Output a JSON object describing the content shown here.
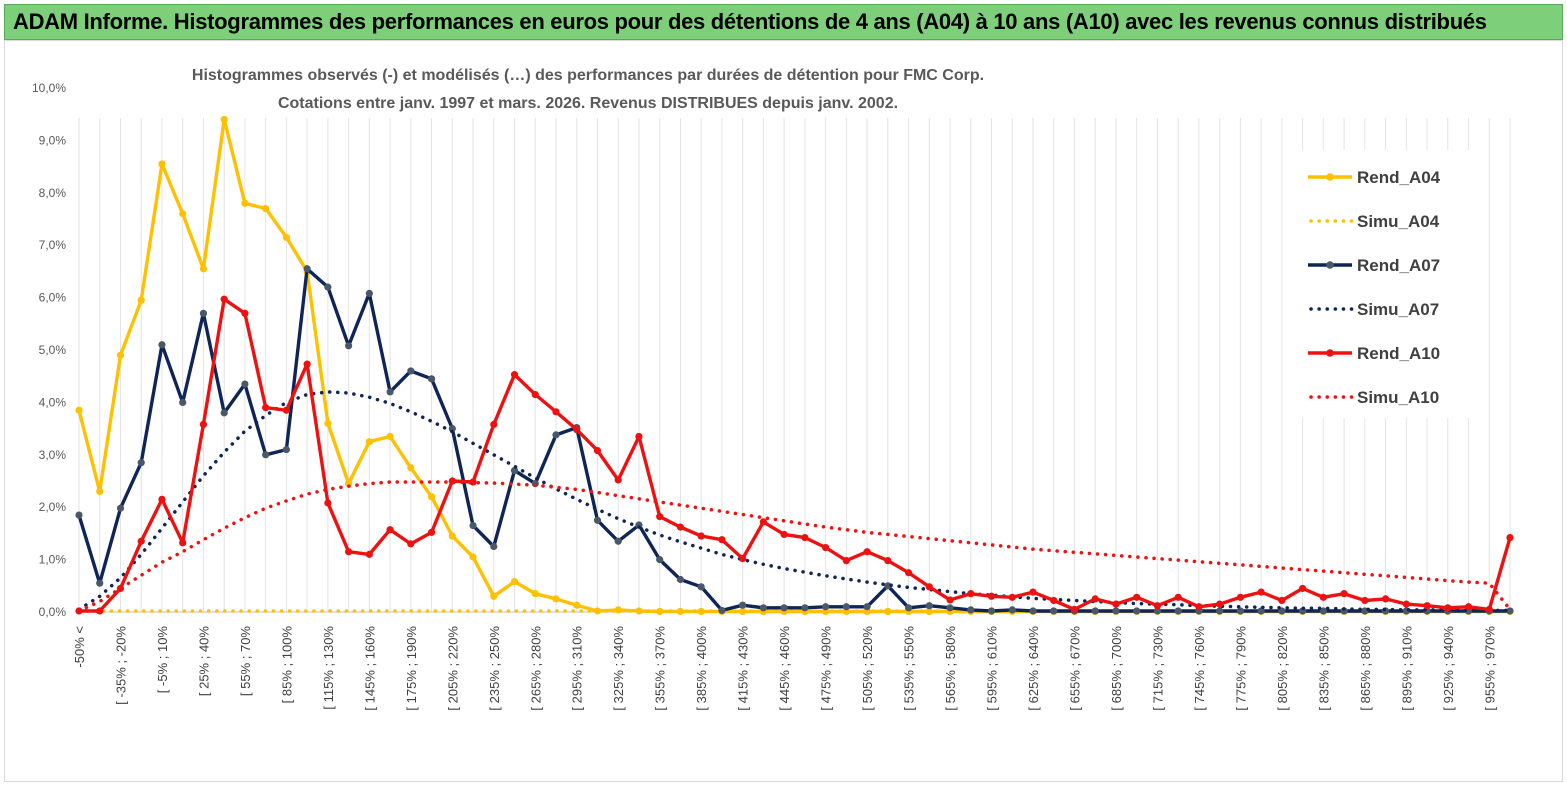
{
  "header": {
    "banner": "ADAM Informe. Histogrammes des performances en euros pour des détentions de 4 ans (A04) à 10 ans (A10) avec les revenus connus distribués"
  },
  "chart_data": {
    "type": "line",
    "title": [
      "Histogrammes observés (-) et modélisés (…) des performances par durées de détention pour FMC Corp.",
      "Cotations entre janv. 1997 et mars. 2026. Revenus DISTRIBUES depuis janv. 2002."
    ],
    "xlabel": "",
    "ylabel": "",
    "ylim": [
      0,
      10
    ],
    "y_unit": "%",
    "y_ticks": [
      "0,0%",
      "1,0%",
      "2,0%",
      "3,0%",
      "4,0%",
      "5,0%",
      "6,0%",
      "7,0%",
      "8,0%",
      "9,0%",
      "10,0%"
    ],
    "x_tick_labels": [
      "-50% <",
      "[ -35% ; -20%",
      "[ -5% ; 10%",
      "[ 25% ; 40%",
      "[ 55% ; 70%",
      "[ 85% ; 100%",
      "[ 115% ; 130%",
      "[ 145% ; 160%",
      "[ 175% ; 190%",
      "[ 205% ; 220%",
      "[ 235% ; 250%",
      "[ 265% ; 280%",
      "[ 295% ; 310%",
      "[ 325% ; 340%",
      "[ 355% ; 370%",
      "[ 385% ; 400%",
      "[ 415% ; 430%",
      "[ 445% ; 460%",
      "[ 475% ; 490%",
      "[ 505% ; 520%",
      "[ 535% ; 550%",
      "[ 565% ; 580%",
      "[ 595% ; 610%",
      "[ 625% ; 640%",
      "[ 655% ; 670%",
      "[ 685% ; 700%",
      "[ 715% ; 730%",
      "[ 745% ; 760%",
      "[ 775% ; 790%",
      "[ 805% ; 820%",
      "[ 835% ; 850%",
      "[ 865% ; 880%",
      "[ 895% ; 910%",
      "[ 925% ; 940%",
      "[ 955% ; 970%"
    ],
    "n_categories": 70,
    "legend_position": "right",
    "series": [
      {
        "name": "Rend_A04",
        "color": "#ffc000",
        "style": "solid",
        "values": [
          3.85,
          2.3,
          4.9,
          5.95,
          8.55,
          7.6,
          6.55,
          9.4,
          7.8,
          7.7,
          7.15,
          6.5,
          3.6,
          2.45,
          3.25,
          3.35,
          2.75,
          2.2,
          1.45,
          1.05,
          0.3,
          0.58,
          0.35,
          0.25,
          0.13,
          0.02,
          0.04,
          0.02,
          0.01,
          0.01,
          0.01,
          0.01,
          0.01,
          0.01,
          0.01,
          0.01,
          0.01,
          0.01,
          0.01,
          0.01,
          0.01,
          0.01,
          0.01,
          0.01,
          0.01,
          0.01,
          0.01,
          0.01,
          0.01,
          0.01,
          0.01,
          0.01,
          0.01,
          0.01,
          0.01,
          0.01,
          0.01,
          0.01,
          0.01,
          0.01,
          0.01,
          0.01,
          0.01,
          0.01,
          0.01,
          0.01,
          0.01,
          0.01,
          0.01,
          0.01
        ]
      },
      {
        "name": "Simu_A04",
        "color": "#ffc000",
        "style": "dotted",
        "values": [
          0.02,
          0.02,
          0.02,
          0.02,
          0.02,
          0.02,
          0.02,
          0.02,
          0.02,
          0.02,
          0.02,
          0.02,
          0.02,
          0.02,
          0.02,
          0.02,
          0.02,
          0.02,
          0.02,
          0.02,
          0.02,
          0.02,
          0.02,
          0.02,
          0.02,
          0.02,
          0.02,
          0.02,
          0.02,
          0.02,
          0.02,
          0.02,
          0.02,
          0.02,
          0.02,
          0.02,
          0.02,
          0.02,
          0.02,
          0.02,
          0.02,
          0.02,
          0.02,
          0.02,
          0.02,
          0.02,
          0.02,
          0.02,
          0.02,
          0.02,
          0.02,
          0.02,
          0.02,
          0.02,
          0.02,
          0.02,
          0.02,
          0.02,
          0.02,
          0.02,
          0.02,
          0.02,
          0.02,
          0.02,
          0.02,
          0.02,
          0.02,
          0.02,
          0.02,
          0.02
        ]
      },
      {
        "name": "Rend_A07",
        "color": "#0f2557",
        "style": "solid",
        "values": [
          1.85,
          0.55,
          1.98,
          2.85,
          5.1,
          4.0,
          5.7,
          3.8,
          4.35,
          3.0,
          3.1,
          6.55,
          6.2,
          5.08,
          6.08,
          4.2,
          4.6,
          4.45,
          3.5,
          1.65,
          1.25,
          2.7,
          2.45,
          3.38,
          3.52,
          1.75,
          1.35,
          1.66,
          1.0,
          0.62,
          0.48,
          0.03,
          0.13,
          0.08,
          0.08,
          0.08,
          0.1,
          0.1,
          0.1,
          0.5,
          0.08,
          0.12,
          0.08,
          0.04,
          0.02,
          0.04,
          0.02,
          0.02,
          0.02,
          0.02,
          0.02,
          0.02,
          0.02,
          0.02,
          0.02,
          0.02,
          0.02,
          0.02,
          0.02,
          0.02,
          0.02,
          0.02,
          0.02,
          0.02,
          0.02,
          0.02,
          0.02,
          0.02,
          0.02,
          0.02
        ]
      },
      {
        "name": "Simu_A07",
        "color": "#0f2557",
        "style": "dotted",
        "values": [
          0.05,
          0.3,
          0.65,
          1.1,
          1.6,
          2.1,
          2.6,
          3.05,
          3.45,
          3.75,
          4.0,
          4.15,
          4.2,
          4.18,
          4.1,
          3.98,
          3.82,
          3.64,
          3.44,
          3.22,
          3.0,
          2.78,
          2.56,
          2.35,
          2.15,
          1.96,
          1.78,
          1.62,
          1.47,
          1.34,
          1.22,
          1.1,
          1.0,
          0.91,
          0.83,
          0.76,
          0.69,
          0.63,
          0.57,
          0.52,
          0.47,
          0.43,
          0.39,
          0.35,
          0.32,
          0.29,
          0.26,
          0.24,
          0.22,
          0.2,
          0.18,
          0.16,
          0.15,
          0.14,
          0.12,
          0.11,
          0.1,
          0.09,
          0.08,
          0.07,
          0.07,
          0.06,
          0.05,
          0.05,
          0.04,
          0.04,
          0.04,
          0.03,
          0.03,
          0.03
        ]
      },
      {
        "name": "Rend_A10",
        "color": "#ee1111",
        "style": "solid",
        "values": [
          0.02,
          0.02,
          0.45,
          1.35,
          2.15,
          1.32,
          3.58,
          5.97,
          5.7,
          3.9,
          3.85,
          4.73,
          2.08,
          1.15,
          1.1,
          1.57,
          1.3,
          1.52,
          2.5,
          2.48,
          3.58,
          4.53,
          4.15,
          3.82,
          3.48,
          3.08,
          2.52,
          3.35,
          1.82,
          1.62,
          1.45,
          1.38,
          1.02,
          1.72,
          1.48,
          1.42,
          1.23,
          0.98,
          1.15,
          0.98,
          0.75,
          0.48,
          0.23,
          0.35,
          0.3,
          0.28,
          0.38,
          0.22,
          0.05,
          0.25,
          0.15,
          0.28,
          0.12,
          0.28,
          0.1,
          0.15,
          0.28,
          0.38,
          0.22,
          0.45,
          0.28,
          0.35,
          0.22,
          0.25,
          0.15,
          0.12,
          0.08,
          0.1,
          0.05,
          1.42
        ]
      },
      {
        "name": "Simu_A10",
        "color": "#ee1111",
        "style": "dotted",
        "values": [
          0.02,
          0.2,
          0.45,
          0.7,
          0.95,
          1.15,
          1.38,
          1.6,
          1.8,
          1.98,
          2.12,
          2.25,
          2.34,
          2.4,
          2.45,
          2.48,
          2.48,
          2.48,
          2.48,
          2.47,
          2.46,
          2.44,
          2.42,
          2.38,
          2.34,
          2.28,
          2.22,
          2.16,
          2.1,
          2.04,
          1.98,
          1.92,
          1.86,
          1.8,
          1.74,
          1.68,
          1.62,
          1.57,
          1.52,
          1.48,
          1.44,
          1.4,
          1.36,
          1.32,
          1.28,
          1.24,
          1.2,
          1.17,
          1.14,
          1.11,
          1.08,
          1.05,
          1.02,
          0.99,
          0.96,
          0.93,
          0.9,
          0.87,
          0.84,
          0.81,
          0.78,
          0.75,
          0.72,
          0.69,
          0.66,
          0.63,
          0.6,
          0.57,
          0.55,
          0.05
        ]
      }
    ]
  }
}
